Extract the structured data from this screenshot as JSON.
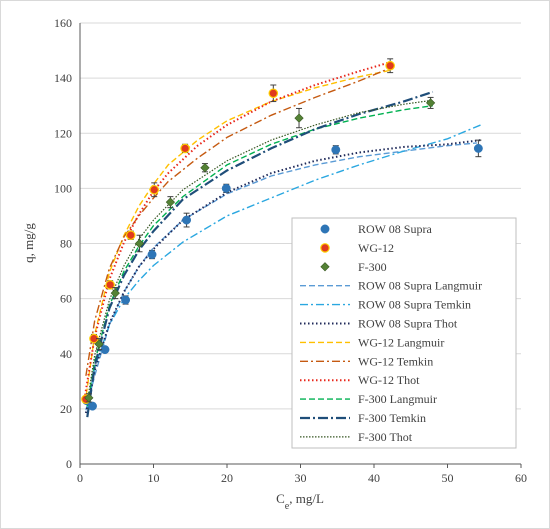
{
  "chart_data": {
    "type": "scatter",
    "xlabel": "Ce, mg/L",
    "ylabel": "q, mg/g",
    "xlim": [
      0,
      60
    ],
    "ylim": [
      0,
      160
    ],
    "xticks": [
      0,
      10,
      20,
      30,
      40,
      50,
      60
    ],
    "yticks": [
      0,
      20,
      40,
      60,
      80,
      100,
      120,
      140,
      160
    ],
    "grid": "horizontal",
    "legend_position": "right",
    "series": [
      {
        "name": "ROW 08 Supra",
        "kind": "points",
        "marker": "circle",
        "color": "#2e75b6",
        "x": [
          0.9,
          1.7,
          3.4,
          6.2,
          9.8,
          14.5,
          19.9,
          34.8,
          54.2
        ],
        "y": [
          23.0,
          21.0,
          41.5,
          59.5,
          76.0,
          88.5,
          100.0,
          114.0,
          114.5
        ],
        "err": [
          1.0,
          1.0,
          1.0,
          1.5,
          1.5,
          2.5,
          1.5,
          1.5,
          3.0
        ]
      },
      {
        "name": "WG-12",
        "kind": "points",
        "marker": "circle",
        "color": "#e03a1e",
        "edge": "#ffd000",
        "x": [
          0.8,
          1.9,
          4.1,
          6.9,
          10.1,
          14.3,
          26.3,
          42.2
        ],
        "y": [
          23.5,
          45.5,
          65.0,
          83.0,
          99.5,
          114.5,
          134.5,
          144.5
        ],
        "err": [
          1.0,
          1.5,
          1.5,
          1.5,
          2.5,
          1.5,
          3.0,
          2.5
        ]
      },
      {
        "name": "F-300",
        "kind": "points",
        "marker": "diamond",
        "color": "#548235",
        "x": [
          1.2,
          2.6,
          4.8,
          8.1,
          12.3,
          17.0,
          29.8,
          47.7
        ],
        "y": [
          24.0,
          43.5,
          62.0,
          80.0,
          95.0,
          107.5,
          125.5,
          131.0
        ],
        "err": [
          1.5,
          2.0,
          2.0,
          3.0,
          2.0,
          1.5,
          3.5,
          2.0
        ]
      },
      {
        "name": "ROW 08 Supra Langmuir",
        "kind": "line",
        "dash": "6 3",
        "width": 1.4,
        "color": "#5b9bd5",
        "x": [
          0.8,
          2,
          4,
          6,
          8,
          10,
          14,
          20,
          26,
          32,
          38,
          44,
          50,
          54
        ],
        "y": [
          19.5,
          32.0,
          50.5,
          62.5,
          71.5,
          78.5,
          88.5,
          98.0,
          104.5,
          108.5,
          111.5,
          113.5,
          115.5,
          116.5
        ]
      },
      {
        "name": "ROW 08 Supra Temkin",
        "kind": "line",
        "dash": "8 3 2 3",
        "width": 1.4,
        "color": "#2aa7e0",
        "x": [
          1.0,
          2,
          4,
          6,
          8,
          10,
          14,
          20,
          26,
          32,
          38,
          44,
          50,
          54.5
        ],
        "y": [
          20.0,
          35.0,
          50.5,
          60.0,
          66.5,
          72.0,
          80.5,
          90.0,
          96.5,
          103.0,
          108.5,
          113.5,
          118.0,
          123.0
        ]
      },
      {
        "name": "ROW 08 Supra Thot",
        "kind": "line",
        "dash": "1.5 2.5",
        "width": 2.0,
        "color": "#1f2a5a",
        "x": [
          0.8,
          2,
          4,
          6,
          8,
          10,
          14,
          20,
          26,
          32,
          38,
          44,
          50,
          54.5
        ],
        "y": [
          18.5,
          34.0,
          51.0,
          62.5,
          71.5,
          78.0,
          88.5,
          98.5,
          105.5,
          110.0,
          113.0,
          115.0,
          116.0,
          117.5
        ]
      },
      {
        "name": "WG-12 Langmuir",
        "kind": "line",
        "dash": "6 3",
        "width": 1.4,
        "color": "#ffc000",
        "x": [
          0.7,
          2,
          4,
          6,
          8,
          10,
          12,
          16,
          20,
          26,
          32,
          38,
          42.5
        ],
        "y": [
          22.0,
          47.0,
          69.5,
          83.0,
          93.5,
          101.5,
          108.5,
          117.5,
          124.5,
          131.5,
          136.5,
          140.5,
          143.0
        ]
      },
      {
        "name": "WG-12 Temkin",
        "kind": "line",
        "dash": "8 3 2 3",
        "width": 1.4,
        "color": "#c55a11",
        "x": [
          0.8,
          2,
          4,
          6,
          8,
          10,
          12,
          16,
          20,
          26,
          32,
          38,
          42.5
        ],
        "y": [
          32.0,
          52.0,
          71.0,
          82.5,
          90.0,
          96.5,
          102.5,
          111.0,
          118.5,
          126.5,
          133.0,
          139.0,
          144.0
        ]
      },
      {
        "name": "WG-12 Thot",
        "kind": "line",
        "dash": "1.5 2.5",
        "width": 2.0,
        "color": "#e8261a",
        "x": [
          0.7,
          2,
          4,
          6,
          8,
          10,
          12,
          16,
          20,
          26,
          32,
          38,
          42.5
        ],
        "y": [
          25.0,
          46.0,
          67.0,
          80.5,
          90.5,
          99.0,
          105.5,
          115.5,
          123.0,
          131.5,
          137.5,
          142.5,
          146.0
        ]
      },
      {
        "name": "F-300 Langmuir",
        "kind": "line",
        "dash": "6 3",
        "width": 1.4,
        "color": "#00b050",
        "x": [
          1.0,
          2,
          4,
          6,
          8,
          10,
          14,
          20,
          26,
          32,
          38,
          44,
          48
        ],
        "y": [
          21.0,
          37.0,
          57.5,
          70.0,
          79.0,
          86.5,
          97.0,
          108.5,
          116.0,
          121.5,
          125.5,
          128.5,
          130.0
        ]
      },
      {
        "name": "F-300 Temkin",
        "kind": "line",
        "dash": "10 3 2 3",
        "width": 2.2,
        "color": "#1f4e79",
        "x": [
          1.0,
          2,
          4,
          6,
          8,
          10,
          14,
          20,
          26,
          32,
          38,
          44,
          48
        ],
        "y": [
          17.0,
          35.5,
          56.5,
          68.5,
          77.5,
          84.5,
          96.0,
          106.5,
          114.5,
          121.5,
          127.0,
          131.5,
          135.0
        ]
      },
      {
        "name": "F-300 Thot",
        "kind": "line",
        "dash": "1.5 1.5",
        "width": 1.2,
        "color": "#375623",
        "x": [
          1.0,
          2,
          4,
          6,
          8,
          10,
          14,
          20,
          26,
          32,
          38,
          44,
          48
        ],
        "y": [
          22.5,
          39.5,
          59.5,
          72.0,
          81.5,
          88.5,
          99.5,
          110.0,
          117.5,
          123.0,
          127.5,
          130.5,
          132.0
        ]
      }
    ]
  }
}
